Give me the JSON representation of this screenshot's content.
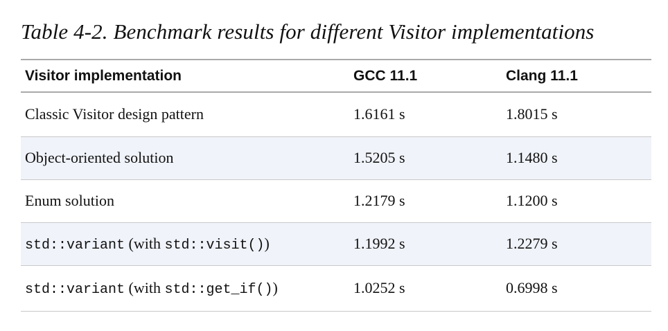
{
  "caption": "Table 4-2. Benchmark results for different Visitor implementations",
  "table": {
    "headers": [
      "Visitor implementation",
      "GCC 11.1",
      "Clang 11.1"
    ],
    "rows": [
      {
        "impl": {
          "text": "Classic Visitor design pattern"
        },
        "gcc": "1.6161 s",
        "clang": "1.8015 s"
      },
      {
        "impl": {
          "text": "Object-oriented solution"
        },
        "gcc": "1.5205 s",
        "clang": "1.1480 s"
      },
      {
        "impl": {
          "text": "Enum solution"
        },
        "gcc": "1.2179 s",
        "clang": "1.1200 s"
      },
      {
        "impl": {
          "code1": "std::variant",
          "mid": " (with ",
          "code2": "std::visit()",
          "end": ")"
        },
        "gcc": "1.1992 s",
        "clang": "1.2279 s"
      },
      {
        "impl": {
          "code1": "std::variant",
          "mid": " (with ",
          "code2": "std::get_if()",
          "end": ")"
        },
        "gcc": "1.0252 s",
        "clang": "0.6998 s"
      }
    ]
  }
}
